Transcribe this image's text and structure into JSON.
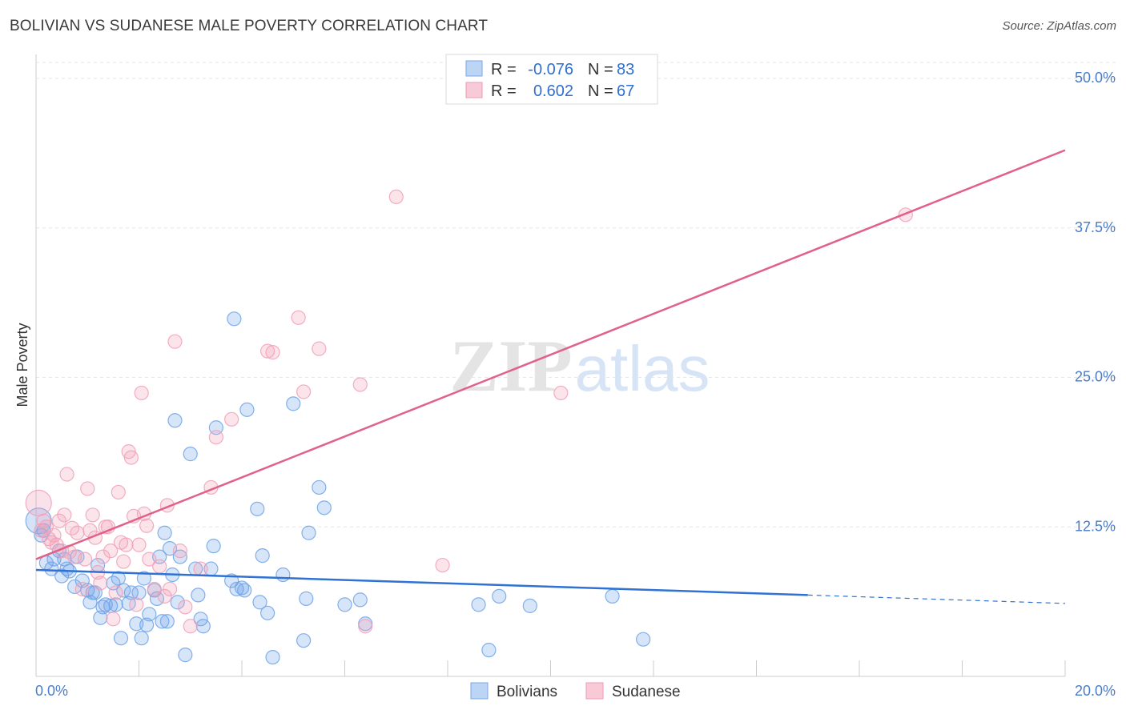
{
  "title": "BOLIVIAN VS SUDANESE MALE POVERTY CORRELATION CHART",
  "source": "Source: ZipAtlas.com",
  "watermark": {
    "zip": "ZIP",
    "atlas": "atlas"
  },
  "chart_data": {
    "type": "scatter",
    "ylabel": "Male Poverty",
    "xlim": [
      0,
      20
    ],
    "ylim": [
      0,
      50
    ],
    "x_tick_labels": [
      "0.0%",
      "20.0%"
    ],
    "y_ticks": [
      12.5,
      25.0,
      37.5,
      50.0
    ],
    "y_tick_labels": [
      "12.5%",
      "25.0%",
      "37.5%",
      "50.0%"
    ],
    "grid": true,
    "legend": {
      "rows": [
        {
          "r_label": "R =",
          "r_value": "-0.076",
          "n_label": "N =",
          "n_value": "83"
        },
        {
          "r_label": "R =",
          "r_value": "0.602",
          "n_label": "N =",
          "n_value": "67"
        }
      ]
    },
    "series": [
      {
        "name": "Bolivians",
        "color": "#6fa3e8",
        "line_color": "#2f72d4",
        "trend": {
          "x0": 0,
          "y0": 8.9,
          "x1": 15,
          "y1": 6.8,
          "dash_x1": 20,
          "dash_y1": 6.1
        },
        "points": [
          [
            0.05,
            13.0
          ],
          [
            0.1,
            11.8
          ],
          [
            0.2,
            9.5
          ],
          [
            0.3,
            9.0
          ],
          [
            0.35,
            9.8
          ],
          [
            0.5,
            8.4
          ],
          [
            0.55,
            9.8
          ],
          [
            0.65,
            8.8
          ],
          [
            0.75,
            7.5
          ],
          [
            0.8,
            10.0
          ],
          [
            0.9,
            8.0
          ],
          [
            1.0,
            7.2
          ],
          [
            1.05,
            6.2
          ],
          [
            1.1,
            7.0
          ],
          [
            1.2,
            9.3
          ],
          [
            1.25,
            4.9
          ],
          [
            1.3,
            5.8
          ],
          [
            1.35,
            6.0
          ],
          [
            1.45,
            5.9
          ],
          [
            1.5,
            7.8
          ],
          [
            1.6,
            8.2
          ],
          [
            1.65,
            3.2
          ],
          [
            1.7,
            7.2
          ],
          [
            1.8,
            6.1
          ],
          [
            1.85,
            7.0
          ],
          [
            1.95,
            4.4
          ],
          [
            2.0,
            7.0
          ],
          [
            2.05,
            3.2
          ],
          [
            2.1,
            8.2
          ],
          [
            2.15,
            4.3
          ],
          [
            2.2,
            5.2
          ],
          [
            2.3,
            7.2
          ],
          [
            2.35,
            6.5
          ],
          [
            2.4,
            10.0
          ],
          [
            2.45,
            4.6
          ],
          [
            2.5,
            12.0
          ],
          [
            2.6,
            10.7
          ],
          [
            2.65,
            8.5
          ],
          [
            2.7,
            21.4
          ],
          [
            2.75,
            6.2
          ],
          [
            2.8,
            10.0
          ],
          [
            2.9,
            1.8
          ],
          [
            3.0,
            18.6
          ],
          [
            3.1,
            9.0
          ],
          [
            3.2,
            4.8
          ],
          [
            3.25,
            4.2
          ],
          [
            3.4,
            9.0
          ],
          [
            3.45,
            10.9
          ],
          [
            3.5,
            20.8
          ],
          [
            3.8,
            8.0
          ],
          [
            3.85,
            29.9
          ],
          [
            3.9,
            7.3
          ],
          [
            4.0,
            7.4
          ],
          [
            4.1,
            22.3
          ],
          [
            4.3,
            14.0
          ],
          [
            4.35,
            6.2
          ],
          [
            4.4,
            10.1
          ],
          [
            4.5,
            5.3
          ],
          [
            4.6,
            1.6
          ],
          [
            4.8,
            8.5
          ],
          [
            5.0,
            22.8
          ],
          [
            5.2,
            3.0
          ],
          [
            5.25,
            6.5
          ],
          [
            5.3,
            12.0
          ],
          [
            5.5,
            15.8
          ],
          [
            5.6,
            14.1
          ],
          [
            6.0,
            6.0
          ],
          [
            6.3,
            6.4
          ],
          [
            6.4,
            4.4
          ],
          [
            8.6,
            6.0
          ],
          [
            8.8,
            2.2
          ],
          [
            9.0,
            6.7
          ],
          [
            9.6,
            5.9
          ],
          [
            11.2,
            6.7
          ],
          [
            11.8,
            3.1
          ],
          [
            0.15,
            12.2
          ],
          [
            0.45,
            10.5
          ],
          [
            0.6,
            9.0
          ],
          [
            1.15,
            7.0
          ],
          [
            1.55,
            6.0
          ],
          [
            2.55,
            4.6
          ],
          [
            3.15,
            6.8
          ],
          [
            4.05,
            7.2
          ]
        ]
      },
      {
        "name": "Sudanese",
        "color": "#f0a0b8",
        "line_color": "#e0628a",
        "trend": {
          "x0": 0,
          "y0": 9.8,
          "x1": 20,
          "y1": 44.0
        },
        "points": [
          [
            0.05,
            14.5
          ],
          [
            0.1,
            12.2
          ],
          [
            0.2,
            12.5
          ],
          [
            0.25,
            11.5
          ],
          [
            0.3,
            11.2
          ],
          [
            0.35,
            11.8
          ],
          [
            0.4,
            11.0
          ],
          [
            0.45,
            13.0
          ],
          [
            0.5,
            10.5
          ],
          [
            0.55,
            13.5
          ],
          [
            0.6,
            16.9
          ],
          [
            0.65,
            10.4
          ],
          [
            0.7,
            12.4
          ],
          [
            0.75,
            10.0
          ],
          [
            0.8,
            12.0
          ],
          [
            0.9,
            7.3
          ],
          [
            0.95,
            9.8
          ],
          [
            1.0,
            15.7
          ],
          [
            1.05,
            12.2
          ],
          [
            1.1,
            13.5
          ],
          [
            1.15,
            11.6
          ],
          [
            1.2,
            8.7
          ],
          [
            1.25,
            7.8
          ],
          [
            1.3,
            10.0
          ],
          [
            1.35,
            12.5
          ],
          [
            1.4,
            12.5
          ],
          [
            1.45,
            10.5
          ],
          [
            1.5,
            4.8
          ],
          [
            1.55,
            7.0
          ],
          [
            1.6,
            15.4
          ],
          [
            1.65,
            11.2
          ],
          [
            1.7,
            9.6
          ],
          [
            1.75,
            11.0
          ],
          [
            1.8,
            18.8
          ],
          [
            1.85,
            18.3
          ],
          [
            1.9,
            13.4
          ],
          [
            1.95,
            6.0
          ],
          [
            2.0,
            11.0
          ],
          [
            2.05,
            23.7
          ],
          [
            2.1,
            13.6
          ],
          [
            2.15,
            12.6
          ],
          [
            2.2,
            9.8
          ],
          [
            2.3,
            7.3
          ],
          [
            2.4,
            9.2
          ],
          [
            2.5,
            6.7
          ],
          [
            2.55,
            14.3
          ],
          [
            2.6,
            7.3
          ],
          [
            2.7,
            28.0
          ],
          [
            2.8,
            10.5
          ],
          [
            2.9,
            5.8
          ],
          [
            3.0,
            4.2
          ],
          [
            3.2,
            9.0
          ],
          [
            3.4,
            15.8
          ],
          [
            3.5,
            20.0
          ],
          [
            3.8,
            21.5
          ],
          [
            4.5,
            27.2
          ],
          [
            4.6,
            27.1
          ],
          [
            5.1,
            30.0
          ],
          [
            5.2,
            23.8
          ],
          [
            5.5,
            27.4
          ],
          [
            6.3,
            24.4
          ],
          [
            6.4,
            4.2
          ],
          [
            7.0,
            40.1
          ],
          [
            7.9,
            9.3
          ],
          [
            10.2,
            23.7
          ],
          [
            16.9,
            38.6
          ],
          [
            0.15,
            13.0
          ]
        ]
      }
    ]
  }
}
